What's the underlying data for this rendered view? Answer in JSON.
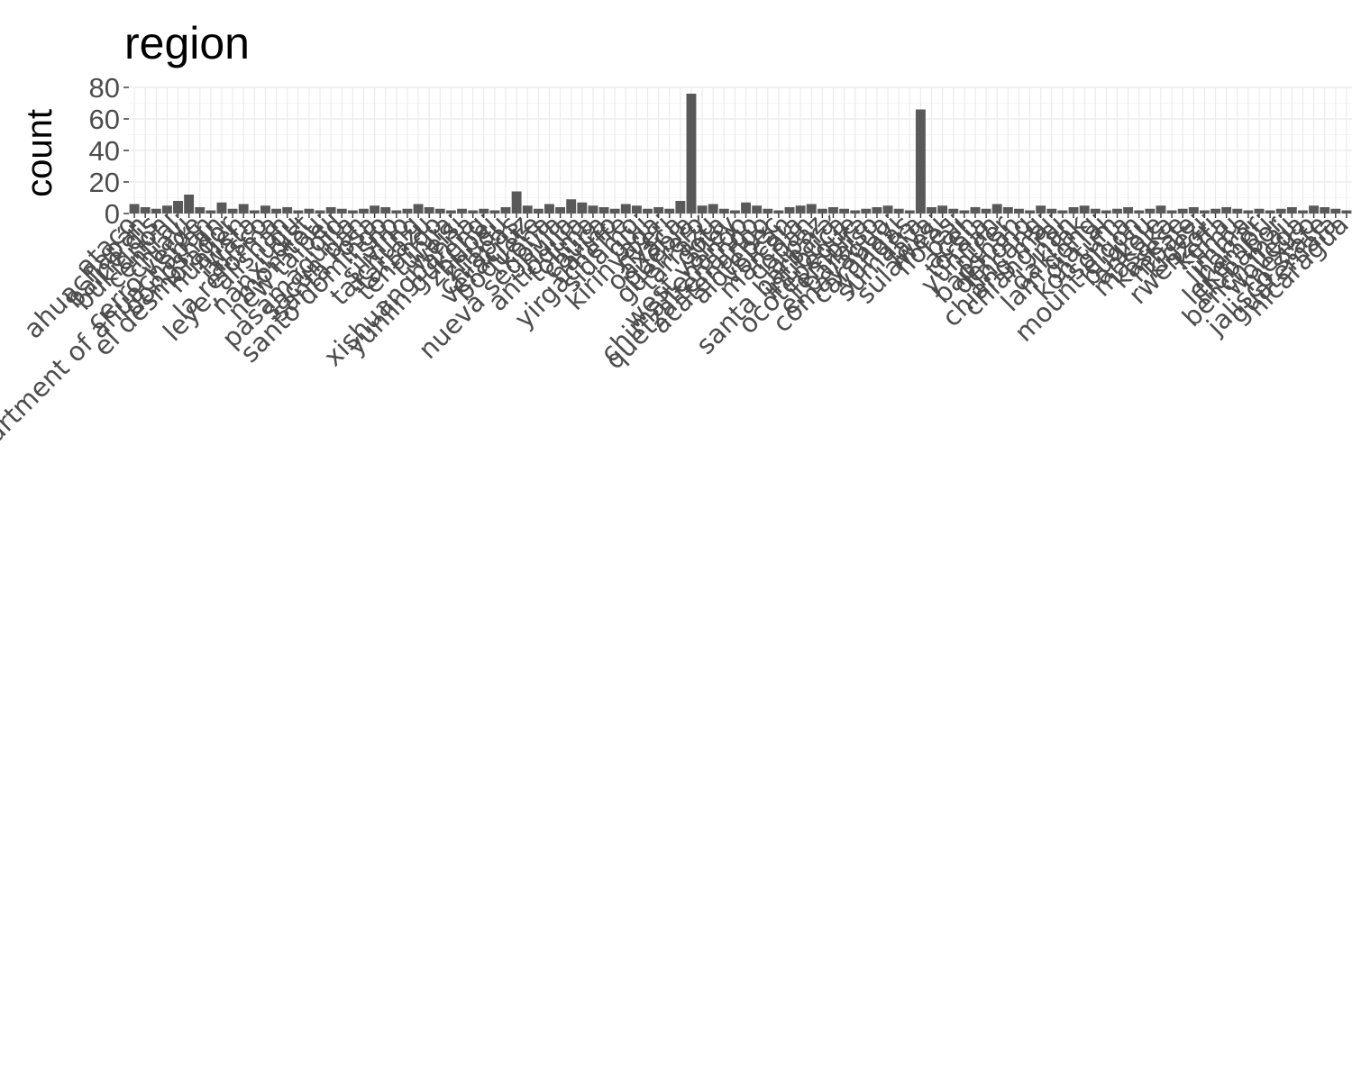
{
  "chart_data": {
    "type": "bar",
    "title": "region",
    "xlabel": "",
    "ylabel": "count",
    "ylim": [
      0,
      80
    ],
    "yticks": [
      0,
      20,
      40,
      60,
      80
    ],
    "grid": true,
    "legend": "none",
    "bar_color": "#595959",
    "label_color": "#4d4d4d",
    "categories": [
      "ataco",
      "ahuachapán",
      "balne dis",
      "bukidnon",
      "central",
      "chiayi",
      "cerro verde",
      "department of ahuachapán",
      "dongshan",
      "el desmolador",
      "hualien",
      "iwata",
      "jalisco",
      "la reforma",
      "leye, alishan",
      "lugu",
      "nanxi dist",
      "momtou",
      "new taipei",
      "old",
      "pasamaquilla",
      "sacún pan",
      "santa rosa",
      "santo domingo",
      "snp",
      "silvino",
      "taichung",
      "tarrazu",
      "tenango",
      "tunjia",
      "weisi",
      "xishuangbanna",
      "yunlin gukeng",
      "zhubei",
      "zhudu",
      "chiapas",
      "veracruz",
      "boquete",
      "kona",
      "nueva segovia",
      "huila",
      "antioquia",
      "tolima",
      "cauca",
      "nariño",
      "yirgacheffe",
      "sidamo",
      "guji",
      "kirinyaga",
      "nyeri",
      "oaxaca",
      "puebla",
      "guerrero",
      "tarrazú",
      "dota",
      "west valley",
      "chimaltenango",
      "quetzaltenango",
      "acatenango",
      "alotepec",
      "volcán",
      "marcala",
      "copán",
      "la paz",
      "santa bárbara",
      "intibucá",
      "ocotepeque",
      "lempira",
      "el paraíso",
      "comayagua",
      "caranavi",
      "yungas",
      "sumatra",
      "java",
      "sulawesi",
      "flores",
      "bali",
      "aceh",
      "toraja",
      "yunnan",
      "pu'er",
      "baoshan",
      "dehong",
      "lincang",
      "chiang mai",
      "chiang rai",
      "nan",
      "dak lak",
      "lam dong",
      "gia lai",
      "kon tum",
      "sơn la",
      "mount elgon",
      "bugisu",
      "ankole",
      "masaka",
      "kasese",
      "mbale",
      "kigezi",
      "rwenzori",
      "keffa",
      "limu",
      "jimma",
      "harrar",
      "lekempti",
      "illubabor",
      "bench maji",
      "wollega",
      "mexico",
      "jalisco state",
      "guatemala",
      "nicaragua"
    ],
    "values": [
      6,
      4,
      3,
      5,
      8,
      12,
      4,
      2,
      7,
      3,
      6,
      2,
      5,
      3,
      4,
      2,
      3,
      2,
      4,
      3,
      2,
      3,
      5,
      4,
      2,
      3,
      6,
      4,
      3,
      2,
      3,
      2,
      3,
      2,
      4,
      14,
      5,
      3,
      6,
      4,
      9,
      7,
      5,
      4,
      3,
      6,
      5,
      3,
      4,
      3,
      8,
      76,
      5,
      6,
      3,
      2,
      7,
      5,
      3,
      2,
      4,
      5,
      6,
      3,
      4,
      3,
      2,
      3,
      4,
      5,
      3,
      2,
      66,
      4,
      5,
      3,
      2,
      4,
      3,
      6,
      4,
      3,
      2,
      5,
      3,
      2,
      4,
      5,
      3,
      2,
      3,
      4,
      2,
      3,
      5,
      2,
      3,
      4,
      2,
      3,
      4,
      3,
      2,
      3,
      2,
      3,
      4,
      2,
      5,
      4,
      3,
      2
    ]
  }
}
